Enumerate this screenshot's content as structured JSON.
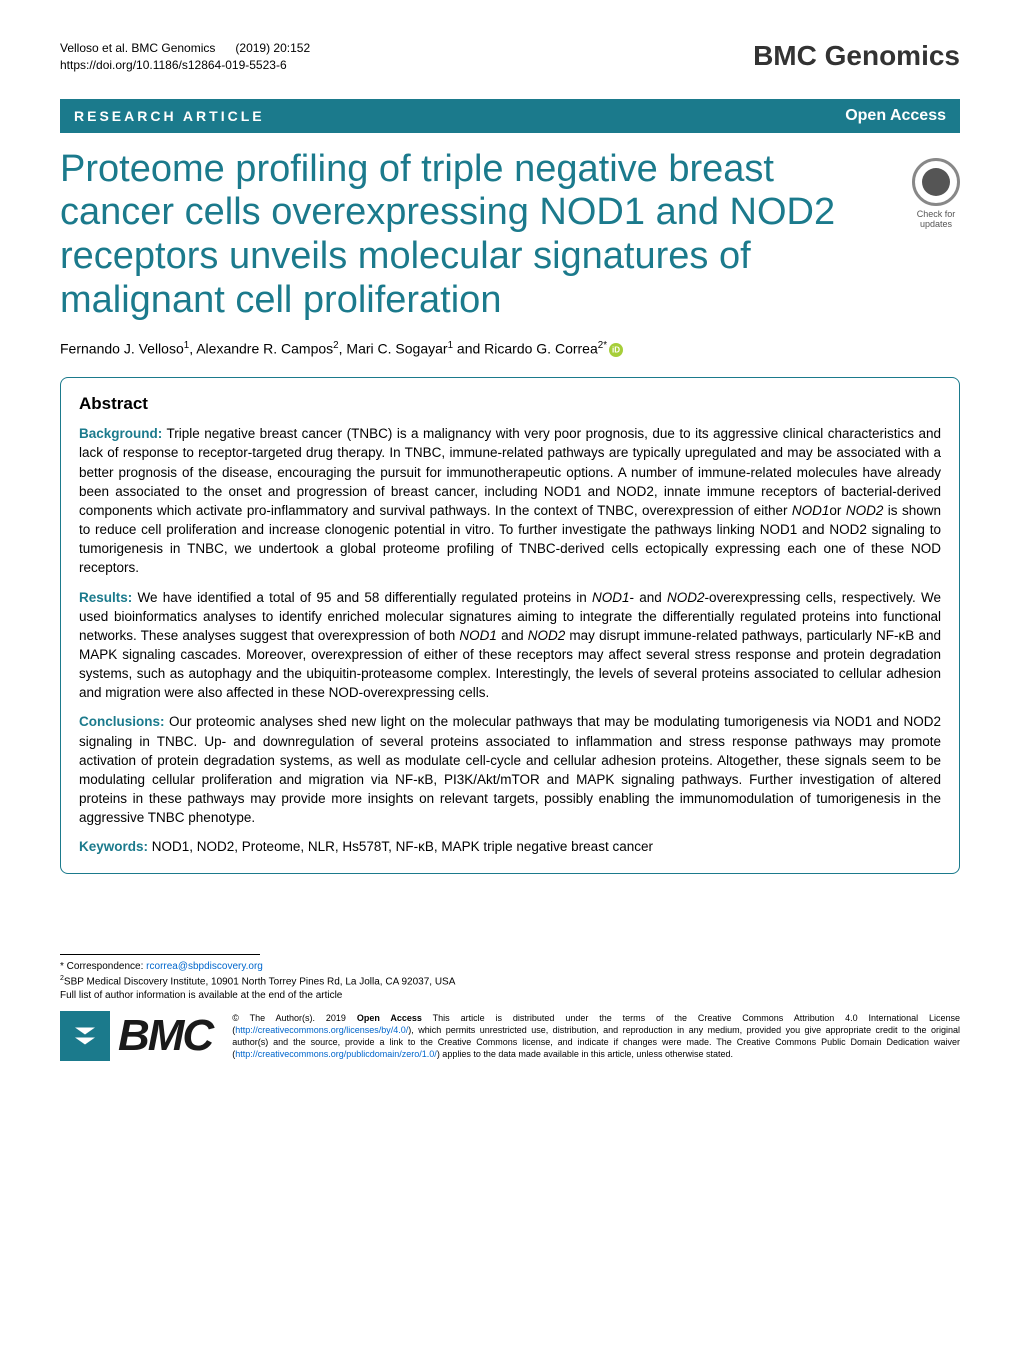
{
  "header": {
    "citation_authors": "Velloso et al. BMC Genomics",
    "citation_ref": "(2019) 20:152",
    "doi": "https://doi.org/10.1186/s12864-019-5523-6",
    "journal_logo": "BMC Genomics"
  },
  "article_type_bar": {
    "type": "RESEARCH ARTICLE",
    "open_access": "Open Access"
  },
  "title": "Proteome profiling of triple negative breast cancer cells overexpressing NOD1 and NOD2 receptors unveils molecular signatures of malignant cell proliferation",
  "crossmark": {
    "line1": "Check for",
    "line2": "updates"
  },
  "authors": {
    "a1_name": "Fernando J. Velloso",
    "a1_aff": "1",
    "a2_name": "Alexandre R. Campos",
    "a2_aff": "2",
    "a3_name": "Mari C. Sogayar",
    "a3_aff": "1",
    "a4_name": "Ricardo G. Correa",
    "a4_aff": "2*"
  },
  "abstract": {
    "heading": "Abstract",
    "background_label": "Background:",
    "background_text": " Triple negative breast cancer (TNBC) is a malignancy with very poor prognosis, due to its aggressive clinical characteristics and lack of response to receptor-targeted drug therapy. In TNBC, immune-related pathways are typically upregulated and may be associated with a better prognosis of the disease, encouraging the pursuit for immunotherapeutic options. A number of immune-related molecules have already been associated to the onset and progression of breast cancer, including NOD1 and NOD2, innate immune receptors of bacterial-derived components which activate pro-inflammatory and survival pathways. In the context of TNBC, overexpression of either ",
    "background_italic1": "NOD1",
    "background_text2": "or ",
    "background_italic2": "NOD2",
    "background_text3": " is shown to reduce cell proliferation and increase clonogenic potential in vitro. To further investigate the pathways linking NOD1 and NOD2 signaling to tumorigenesis in TNBC, we undertook a global proteome profiling of TNBC-derived cells ectopically expressing each one of these NOD receptors.",
    "results_label": "Results:",
    "results_text": " We have identified a total of 95 and 58 differentially regulated proteins in ",
    "results_italic1": "NOD1",
    "results_text2": "- and ",
    "results_italic2": "NOD2",
    "results_text3": "-overexpressing cells, respectively. We used bioinformatics analyses to identify enriched molecular signatures aiming to integrate the differentially regulated proteins into functional networks. These analyses suggest that overexpression of both ",
    "results_italic3": "NOD1",
    "results_text4": " and ",
    "results_italic4": "NOD2",
    "results_text5": " may disrupt immune-related pathways, particularly NF-κB and MAPK signaling cascades. Moreover, overexpression of either of these receptors may affect several stress response and protein degradation systems, such as autophagy and the ubiquitin-proteasome complex. Interestingly, the levels of several proteins associated to cellular adhesion and migration were also affected in these NOD-overexpressing cells.",
    "conclusions_label": "Conclusions:",
    "conclusions_text": " Our proteomic analyses shed new light on the molecular pathways that may be modulating tumorigenesis via NOD1 and NOD2 signaling in TNBC. Up- and downregulation of several proteins associated to inflammation and stress response pathways may promote activation of protein degradation systems, as well as modulate cell-cycle and cellular adhesion proteins. Altogether, these signals seem to be modulating cellular proliferation and migration via NF-κB, PI3K/Akt/mTOR and MAPK signaling pathways. Further investigation of altered proteins in these pathways may provide more insights on relevant targets, possibly enabling the immunomodulation of tumorigenesis in the aggressive TNBC phenotype.",
    "keywords_label": "Keywords:",
    "keywords_text": " NOD1, NOD2, Proteome, NLR, Hs578T, NF-κB, MAPK triple negative breast cancer"
  },
  "footer": {
    "correspondence_label": "* Correspondence: ",
    "correspondence_email": "rcorrea@sbpdiscovery.org",
    "affiliation": "SBP Medical Discovery Institute, 10901 North Torrey Pines Rd, La Jolla, CA 92037, USA",
    "affiliation_sup": "2",
    "full_list": "Full list of author information is available at the end of the article",
    "bmc_text": "BMC",
    "license_prefix": "© The Author(s). 2019 ",
    "license_bold": "Open Access",
    "license_text1": " This article is distributed under the terms of the Creative Commons Attribution 4.0 International License (",
    "license_link1": "http://creativecommons.org/licenses/by/4.0/",
    "license_text2": "), which permits unrestricted use, distribution, and reproduction in any medium, provided you give appropriate credit to the original author(s) and the source, provide a link to the Creative Commons license, and indicate if changes were made. The Creative Commons Public Domain Dedication waiver (",
    "license_link2": "http://creativecommons.org/publicdomain/zero/1.0/",
    "license_text3": ") applies to the data made available in this article, unless otherwise stated."
  },
  "colors": {
    "primary": "#1b7a8c",
    "text": "#000000",
    "link": "#0066cc",
    "orcid": "#a6ce39"
  }
}
